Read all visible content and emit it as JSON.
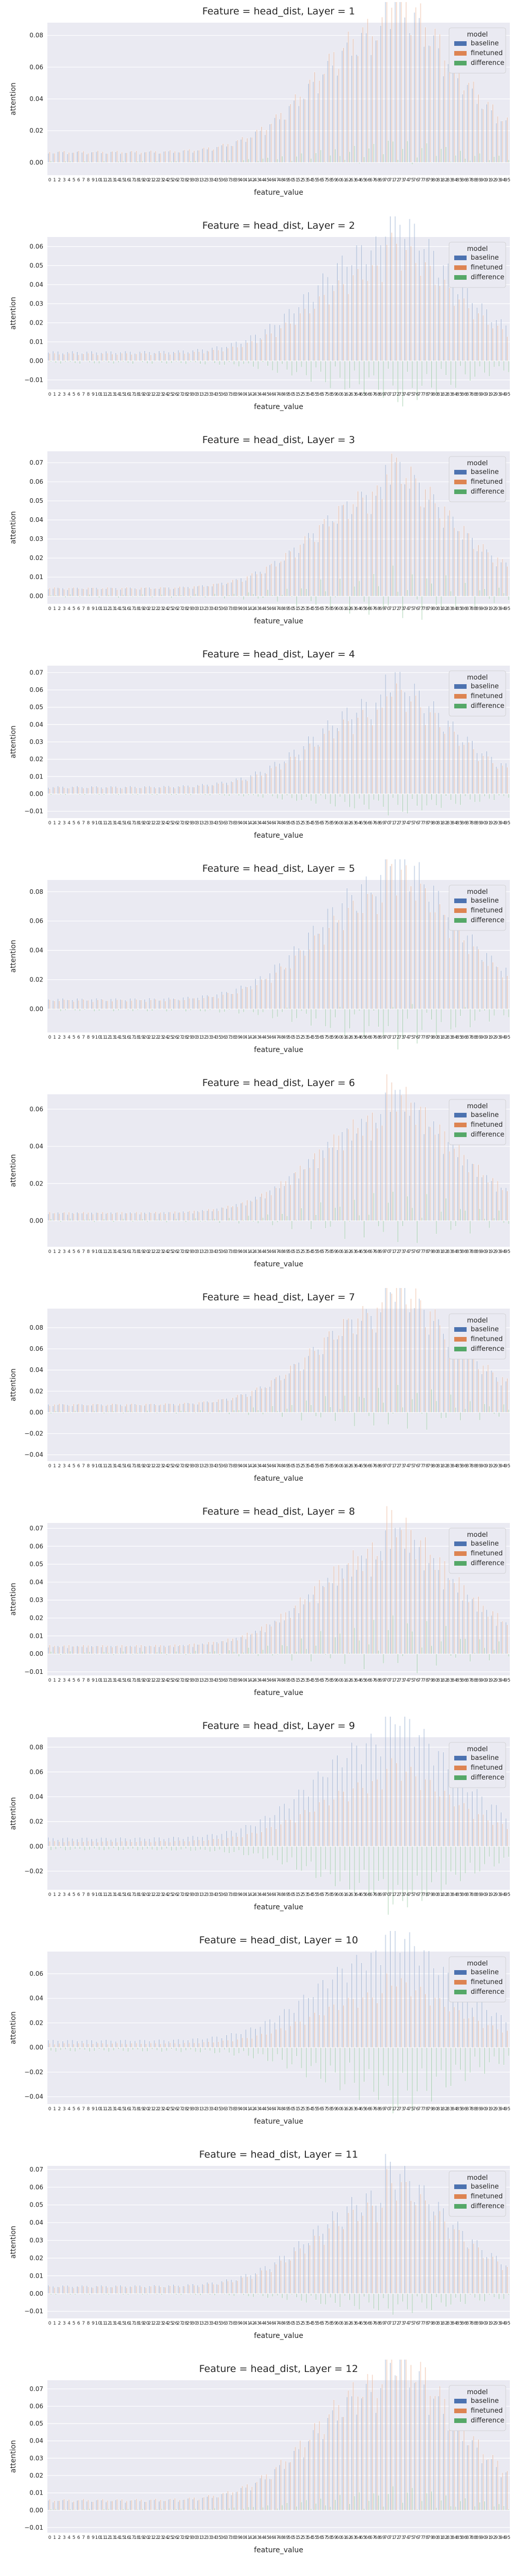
{
  "colors": {
    "baseline": "#4c72b0",
    "finetuned": "#dd8452",
    "difference": "#55a868",
    "panel_bg": "#eaeaf2",
    "grid": "#ffffff"
  },
  "legend": {
    "title": "model",
    "placement": "top-right",
    "entries": [
      "baseline",
      "finetuned",
      "difference"
    ]
  },
  "chart_data": [
    {
      "type": "bar",
      "title": "Feature = head_dist, Layer = 1",
      "xlabel": "feature_value",
      "ylabel": "attention",
      "ylim": [
        -0.008,
        0.088
      ],
      "yticks": [
        "0.00",
        "0.02",
        "0.04",
        "0.06",
        "0.08"
      ],
      "ytick_values": [
        0,
        0.02,
        0.04,
        0.06,
        0.08
      ],
      "num_categories": 96,
      "series": [
        {
          "name": "baseline",
          "peak": 0.075
        },
        {
          "name": "finetuned",
          "peak": 0.081
        },
        {
          "name": "difference",
          "peak": 0.006
        }
      ]
    },
    {
      "type": "bar",
      "title": "Feature = head_dist, Layer = 2",
      "xlabel": "feature_value",
      "ylabel": "attention",
      "ylim": [
        -0.015,
        0.065
      ],
      "yticks": [
        "−0.01",
        "0.00",
        "0.01",
        "0.02",
        "0.03",
        "0.04",
        "0.05",
        "0.06"
      ],
      "ytick_values": [
        -0.01,
        0,
        0.01,
        0.02,
        0.03,
        0.04,
        0.05,
        0.06
      ],
      "num_categories": 96,
      "series": [
        {
          "name": "baseline",
          "peak": 0.057
        },
        {
          "name": "finetuned",
          "peak": 0.045
        },
        {
          "name": "difference",
          "peak": -0.012
        }
      ]
    },
    {
      "type": "bar",
      "title": "Feature = head_dist, Layer = 3",
      "xlabel": "feature_value",
      "ylabel": "attention",
      "ylim": [
        -0.004,
        0.076
      ],
      "yticks": [
        "0.00",
        "0.01",
        "0.02",
        "0.03",
        "0.04",
        "0.05",
        "0.06",
        "0.07"
      ],
      "ytick_values": [
        0,
        0.01,
        0.02,
        0.03,
        0.04,
        0.05,
        0.06,
        0.07
      ],
      "num_categories": 96,
      "series": [
        {
          "name": "baseline",
          "peak": 0.05
        },
        {
          "name": "finetuned",
          "peak": 0.051
        },
        {
          "name": "difference",
          "peak": 0.002
        }
      ]
    },
    {
      "type": "bar",
      "title": "Feature = head_dist, Layer = 4",
      "xlabel": "feature_value",
      "ylabel": "attention",
      "ylim": [
        -0.014,
        0.074
      ],
      "yticks": [
        "−0.01",
        "0.00",
        "0.01",
        "0.02",
        "0.03",
        "0.04",
        "0.05",
        "0.06",
        "0.07"
      ],
      "ytick_values": [
        -0.01,
        0,
        0.01,
        0.02,
        0.03,
        0.04,
        0.05,
        0.06,
        0.07
      ],
      "num_categories": 96,
      "series": [
        {
          "name": "baseline",
          "peak": 0.05
        },
        {
          "name": "finetuned",
          "peak": 0.044
        },
        {
          "name": "difference",
          "peak": -0.008
        }
      ]
    },
    {
      "type": "bar",
      "title": "Feature = head_dist, Layer = 5",
      "xlabel": "feature_value",
      "ylabel": "attention",
      "ylim": [
        -0.016,
        0.088
      ],
      "yticks": [
        "0.00",
        "0.02",
        "0.04",
        "0.06",
        "0.08"
      ],
      "ytick_values": [
        0,
        0.02,
        0.04,
        0.06,
        0.08
      ],
      "num_categories": 96,
      "series": [
        {
          "name": "baseline",
          "peak": 0.081
        },
        {
          "name": "finetuned",
          "peak": 0.071
        },
        {
          "name": "difference",
          "peak": -0.013
        }
      ]
    },
    {
      "type": "bar",
      "title": "Feature = head_dist, Layer = 6",
      "xlabel": "feature_value",
      "ylabel": "attention",
      "ylim": [
        -0.014,
        0.068
      ],
      "yticks": [
        "0.00",
        "0.02",
        "0.04",
        "0.06"
      ],
      "ytick_values": [
        0,
        0.02,
        0.04,
        0.06
      ],
      "num_categories": 96,
      "series": [
        {
          "name": "baseline",
          "peak": 0.05
        },
        {
          "name": "finetuned",
          "peak": 0.052
        },
        {
          "name": "difference",
          "peak": -0.009
        }
      ]
    },
    {
      "type": "bar",
      "title": "Feature = head_dist, Layer = 7",
      "xlabel": "feature_value",
      "ylabel": "attention",
      "ylim": [
        -0.046,
        0.098
      ],
      "yticks": [
        "−0.04",
        "−0.02",
        "0.00",
        "0.02",
        "0.04",
        "0.06",
        "0.08"
      ],
      "ytick_values": [
        -0.04,
        -0.02,
        0,
        0.02,
        0.04,
        0.06,
        0.08
      ],
      "num_categories": 96,
      "series": [
        {
          "name": "baseline",
          "peak": 0.087
        },
        {
          "name": "finetuned",
          "peak": 0.091
        },
        {
          "name": "difference",
          "peak": -0.041
        }
      ]
    },
    {
      "type": "bar",
      "title": "Feature = head_dist, Layer = 8",
      "xlabel": "feature_value",
      "ylabel": "attention",
      "ylim": [
        -0.012,
        0.073
      ],
      "yticks": [
        "−0.01",
        "0.00",
        "0.01",
        "0.02",
        "0.03",
        "0.04",
        "0.05",
        "0.06",
        "0.07"
      ],
      "ytick_values": [
        -0.01,
        0,
        0.01,
        0.02,
        0.03,
        0.04,
        0.05,
        0.06,
        0.07
      ],
      "num_categories": 96,
      "series": [
        {
          "name": "baseline",
          "peak": 0.05
        },
        {
          "name": "finetuned",
          "peak": 0.055
        },
        {
          "name": "difference",
          "peak": 0.005
        }
      ]
    },
    {
      "type": "bar",
      "title": "Feature = head_dist, Layer = 9",
      "xlabel": "feature_value",
      "ylabel": "attention",
      "ylim": [
        -0.035,
        0.088
      ],
      "yticks": [
        "−0.02",
        "0.00",
        "0.02",
        "0.04",
        "0.06",
        "0.08"
      ],
      "ytick_values": [
        -0.02,
        0,
        0.02,
        0.04,
        0.06,
        0.08
      ],
      "num_categories": 96,
      "series": [
        {
          "name": "baseline",
          "peak": 0.08
        },
        {
          "name": "finetuned",
          "peak": 0.048
        },
        {
          "name": "difference",
          "peak": -0.03
        }
      ]
    },
    {
      "type": "bar",
      "title": "Feature = head_dist, Layer = 10",
      "xlabel": "feature_value",
      "ylabel": "attention",
      "ylim": [
        -0.046,
        0.078
      ],
      "yticks": [
        "−0.04",
        "−0.02",
        "0.00",
        "0.02",
        "0.04",
        "0.06"
      ],
      "ytick_values": [
        -0.04,
        -0.02,
        0,
        0.02,
        0.04,
        0.06
      ],
      "num_categories": 96,
      "series": [
        {
          "name": "baseline",
          "peak": 0.07
        },
        {
          "name": "finetuned",
          "peak": 0.04
        },
        {
          "name": "difference",
          "peak": -0.04
        }
      ]
    },
    {
      "type": "bar",
      "title": "Feature = head_dist, Layer = 11",
      "xlabel": "feature_value",
      "ylabel": "attention",
      "ylim": [
        -0.014,
        0.072
      ],
      "yticks": [
        "−0.01",
        "0.00",
        "0.01",
        "0.02",
        "0.03",
        "0.04",
        "0.05",
        "0.06",
        "0.07"
      ],
      "ytick_values": [
        -0.01,
        0,
        0.01,
        0.02,
        0.03,
        0.04,
        0.05,
        0.06,
        0.07
      ],
      "num_categories": 96,
      "series": [
        {
          "name": "baseline",
          "peak": 0.052
        },
        {
          "name": "finetuned",
          "peak": 0.046
        },
        {
          "name": "difference",
          "peak": -0.008
        }
      ]
    },
    {
      "type": "bar",
      "title": "Feature = head_dist, Layer = 12",
      "xlabel": "feature_value",
      "ylabel": "attention",
      "ylim": [
        -0.013,
        0.075
      ],
      "yticks": [
        "−0.01",
        "0.00",
        "0.01",
        "0.02",
        "0.03",
        "0.04",
        "0.05",
        "0.06",
        "0.07"
      ],
      "ytick_values": [
        -0.01,
        0,
        0.01,
        0.02,
        0.03,
        0.04,
        0.05,
        0.06,
        0.07
      ],
      "num_categories": 96,
      "series": [
        {
          "name": "baseline",
          "peak": 0.065
        },
        {
          "name": "finetuned",
          "peak": 0.071
        },
        {
          "name": "difference",
          "peak": 0.006
        }
      ]
    }
  ]
}
